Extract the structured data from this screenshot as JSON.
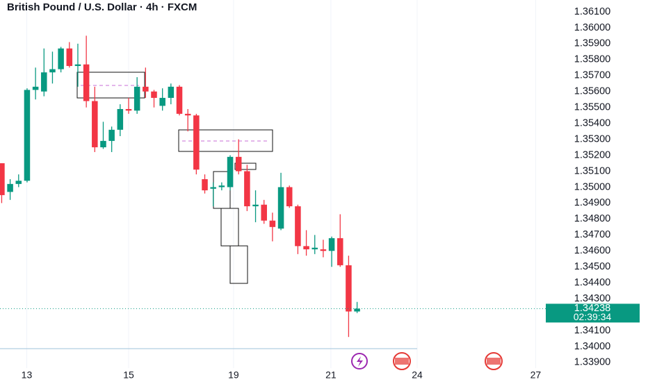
{
  "chart_data": {
    "type": "candlestick",
    "title": "British Pound / U.S. Dollar · 4h · FXCM",
    "up_color": "#089981",
    "down_color": "#f23645",
    "open": [
      1.3515,
      1.3497,
      1.3502,
      1.3504,
      1.3561,
      1.356,
      1.3572,
      1.3574,
      1.3587,
      1.3576,
      1.3577,
      1.3554,
      1.3525,
      1.3529,
      1.3536,
      1.3549,
      1.3548,
      1.3563,
      1.356,
      1.3551,
      1.3556,
      1.3563,
      1.3546,
      1.3545,
      1.3505,
      1.3499,
      1.35,
      1.35,
      1.3519,
      1.351,
      1.3488,
      1.3489,
      1.3479,
      1.3474,
      1.35,
      1.3488,
      1.3463,
      1.3461,
      1.3461,
      1.346,
      1.3468,
      1.3451,
      1.3422
    ],
    "high": [
      1.3515,
      1.3505,
      1.3508,
      1.3562,
      1.3575,
      1.3587,
      1.3585,
      1.3588,
      1.3591,
      1.359,
      1.3595,
      1.3563,
      1.3541,
      1.3538,
      1.3552,
      1.3556,
      1.3569,
      1.3575,
      1.3561,
      1.3562,
      1.3565,
      1.3564,
      1.3549,
      1.3546,
      1.3508,
      1.3503,
      1.3503,
      1.352,
      1.353,
      1.3514,
      1.3498,
      1.3492,
      1.3484,
      1.3509,
      1.3501,
      1.3489,
      1.3473,
      1.347,
      1.3467,
      1.3469,
      1.3483,
      1.3457,
      1.3428
    ],
    "low": [
      1.349,
      1.3492,
      1.35,
      1.3503,
      1.3555,
      1.3557,
      1.3565,
      1.3572,
      1.3575,
      1.3563,
      1.355,
      1.3522,
      1.3524,
      1.3522,
      1.3532,
      1.3546,
      1.3546,
      1.3556,
      1.355,
      1.3548,
      1.3552,
      1.3545,
      1.3535,
      1.3508,
      1.3496,
      1.3488,
      1.3498,
      1.3498,
      1.3508,
      1.3485,
      1.3478,
      1.3477,
      1.3466,
      1.3473,
      1.3487,
      1.3458,
      1.3457,
      1.3458,
      1.3456,
      1.345,
      1.345,
      1.3406,
      1.3421
    ],
    "close": [
      1.3495,
      1.3502,
      1.3504,
      1.3561,
      1.3563,
      1.3572,
      1.3574,
      1.3587,
      1.3576,
      1.3577,
      1.3554,
      1.3525,
      1.3529,
      1.3536,
      1.3549,
      1.3548,
      1.3563,
      1.356,
      1.3556,
      1.3556,
      1.3563,
      1.3546,
      1.3545,
      1.3511,
      1.3498,
      1.35,
      1.3501,
      1.3519,
      1.351,
      1.3488,
      1.3489,
      1.3479,
      1.3475,
      1.35,
      1.3488,
      1.3463,
      1.3461,
      1.3462,
      1.346,
      1.3468,
      1.3451,
      1.3422,
      1.34238
    ],
    "xlim": [
      -0.2,
      64.3
    ],
    "xticks": [
      {
        "value": 2.96,
        "label": "13"
      },
      {
        "value": 15.0,
        "label": "15"
      },
      {
        "value": 27.4,
        "label": "19"
      },
      {
        "value": 38.9,
        "label": "21"
      },
      {
        "value": 49.1,
        "label": "24"
      },
      {
        "value": 63.1,
        "label": "27"
      }
    ],
    "ylim": [
      1.33843,
      1.36174
    ],
    "yticks": [
      {
        "value": 1.361,
        "label": "1.36100"
      },
      {
        "value": 1.36,
        "label": "1.36000"
      },
      {
        "value": 1.359,
        "label": "1.35900"
      },
      {
        "value": 1.358,
        "label": "1.35800"
      },
      {
        "value": 1.357,
        "label": "1.35700"
      },
      {
        "value": 1.356,
        "label": "1.35600"
      },
      {
        "value": 1.355,
        "label": "1.35500"
      },
      {
        "value": 1.354,
        "label": "1.35400"
      },
      {
        "value": 1.353,
        "label": "1.35300"
      },
      {
        "value": 1.352,
        "label": "1.35200"
      },
      {
        "value": 1.351,
        "label": "1.35100"
      },
      {
        "value": 1.35,
        "label": "1.35000"
      },
      {
        "value": 1.349,
        "label": "1.34900"
      },
      {
        "value": 1.348,
        "label": "1.34800"
      },
      {
        "value": 1.347,
        "label": "1.34700"
      },
      {
        "value": 1.346,
        "label": "1.34600"
      },
      {
        "value": 1.345,
        "label": "1.34500"
      },
      {
        "value": 1.344,
        "label": "1.34400"
      },
      {
        "value": 1.343,
        "label": "1.34300"
      },
      {
        "value": 1.341,
        "label": "1.34100"
      },
      {
        "value": 1.34,
        "label": "1.34000"
      },
      {
        "value": 1.339,
        "label": "1.33900"
      }
    ],
    "last_price": 1.34238,
    "countdown": "02:39:34"
  }
}
